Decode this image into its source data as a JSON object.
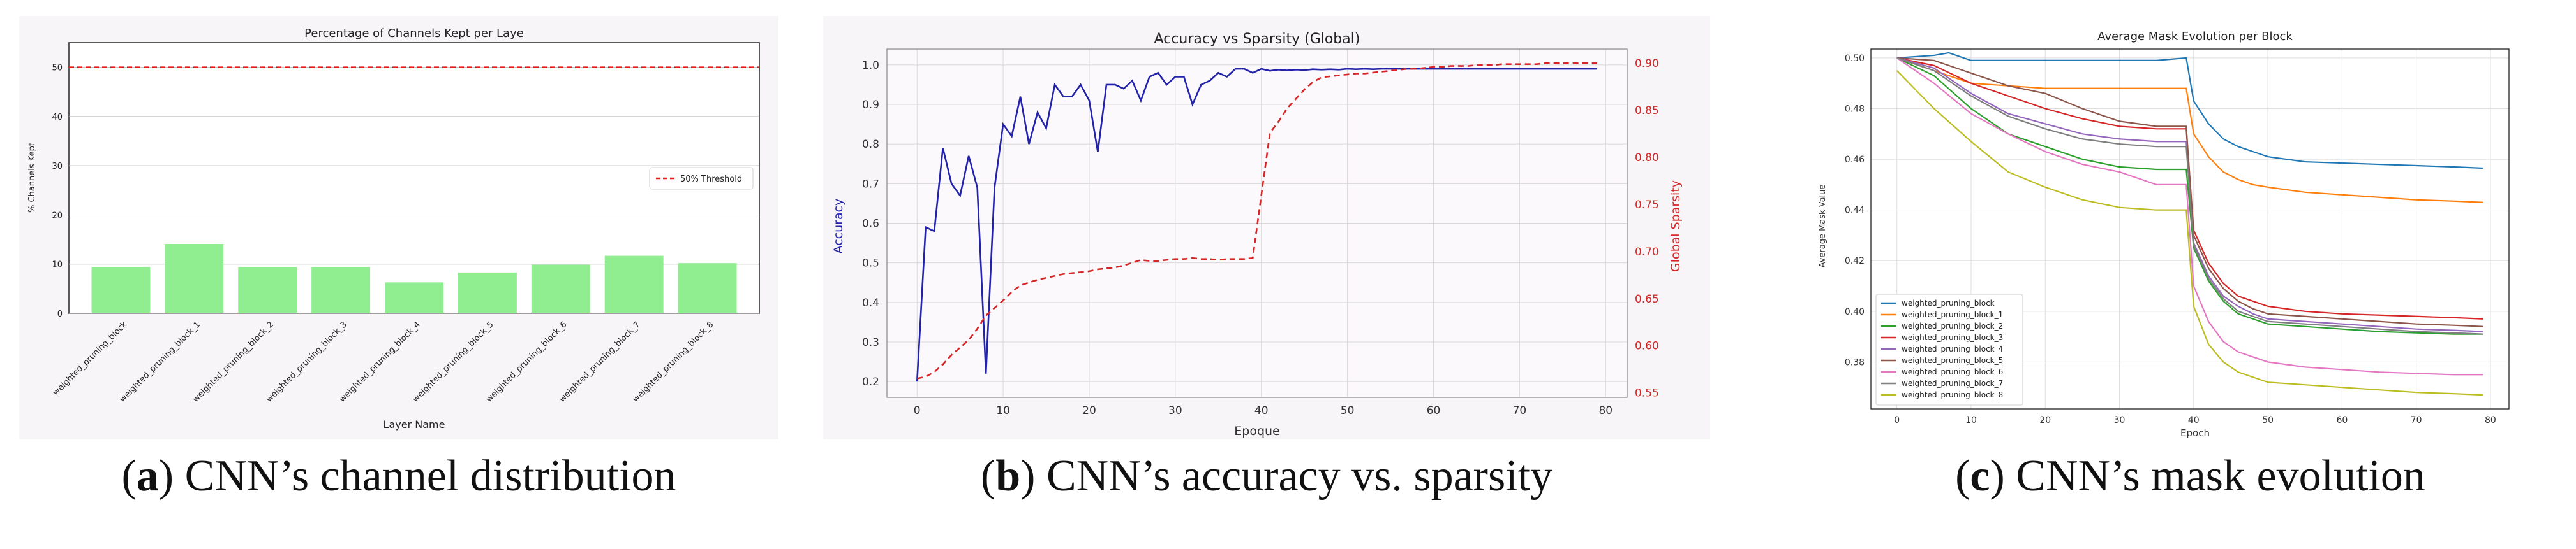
{
  "charts": {
    "a": {
      "caption_letter": "a",
      "caption_text": "CNN’s channel distribution",
      "chart_data": {
        "type": "bar",
        "title": "Percentage of Channels Kept per Laye",
        "xlabel": "Layer Name",
        "ylabel": "% Channels Kept",
        "ylim": [
          0,
          55
        ],
        "yticks": [
          "0",
          "10",
          "20",
          "30",
          "40",
          "50"
        ],
        "categories": [
          "weighted_pruning_block",
          "weighted_pruning_block_1",
          "weighted_pruning_block_2",
          "weighted_pruning_block_3",
          "weighted_pruning_block_4",
          "weighted_pruning_block_5",
          "weighted_pruning_block_6",
          "weighted_pruning_block_7",
          "weighted_pruning_block_8"
        ],
        "values": [
          9.4,
          14.1,
          9.4,
          9.4,
          6.3,
          8.3,
          9.9,
          11.7,
          10.2
        ],
        "threshold": 50,
        "legend": [
          "50% Threshold"
        ],
        "legend_position": "right",
        "bar_color": "#90ee90",
        "threshold_color": "#e41a1c",
        "grid": true
      }
    },
    "b": {
      "caption_letter": "b",
      "caption_text": "CNN’s accuracy vs. sparsity",
      "chart_data": {
        "type": "line",
        "title": "Accuracy vs Sparsity (Global)",
        "xlabel": "Epoque",
        "ylabel": "Accuracy",
        "ylabel_right": "Global Sparsity",
        "xlim": [
          -3.5,
          82.5
        ],
        "ylim": [
          0.16,
          1.04
        ],
        "ylim_right": [
          0.545,
          0.915
        ],
        "xticks": [
          "0",
          "10",
          "20",
          "30",
          "40",
          "50",
          "60",
          "70",
          "80"
        ],
        "yticks": [
          "0.2",
          "0.3",
          "0.4",
          "0.5",
          "0.6",
          "0.7",
          "0.8",
          "0.9",
          "1.0"
        ],
        "yticks_right": [
          "0.55",
          "0.60",
          "0.65",
          "0.70",
          "0.75",
          "0.80",
          "0.85",
          "0.90"
        ],
        "grid": true,
        "series": [
          {
            "axis": "left",
            "color": "#2222aa",
            "style": "solid",
            "x": [
              0,
              1,
              2,
              3,
              4,
              5,
              6,
              7,
              8,
              9,
              10,
              11,
              12,
              13,
              14,
              15,
              16,
              17,
              18,
              19,
              20,
              21,
              22,
              23,
              24,
              25,
              26,
              27,
              28,
              29,
              30,
              31,
              32,
              33,
              34,
              35,
              36,
              37,
              38,
              39,
              40,
              41,
              42,
              43,
              44,
              45,
              46,
              47,
              48,
              49,
              50,
              51,
              52,
              53,
              54,
              55,
              56,
              57,
              58,
              59,
              60,
              61,
              62,
              63,
              64,
              65,
              66,
              67,
              68,
              69,
              70,
              71,
              72,
              73,
              74,
              75,
              76,
              77,
              78,
              79
            ],
            "values": [
              0.2,
              0.59,
              0.58,
              0.79,
              0.7,
              0.67,
              0.77,
              0.69,
              0.22,
              0.69,
              0.85,
              0.82,
              0.92,
              0.8,
              0.88,
              0.84,
              0.95,
              0.92,
              0.92,
              0.95,
              0.91,
              0.78,
              0.95,
              0.95,
              0.94,
              0.96,
              0.91,
              0.97,
              0.98,
              0.95,
              0.97,
              0.97,
              0.9,
              0.95,
              0.96,
              0.98,
              0.97,
              0.99,
              0.99,
              0.98,
              0.99,
              0.985,
              0.988,
              0.986,
              0.988,
              0.987,
              0.989,
              0.988,
              0.989,
              0.988,
              0.99,
              0.989,
              0.99,
              0.989,
              0.99,
              0.99,
              0.99,
              0.99,
              0.99,
              0.99,
              0.99,
              0.99,
              0.99,
              0.99,
              0.99,
              0.99,
              0.99,
              0.99,
              0.99,
              0.99,
              0.99,
              0.99,
              0.99,
              0.99,
              0.99,
              0.99,
              0.99,
              0.99,
              0.99,
              0.99
            ]
          },
          {
            "axis": "right",
            "color": "#d62728",
            "style": "dashed",
            "x": [
              0,
              1,
              2,
              3,
              4,
              5,
              6,
              7,
              8,
              9,
              10,
              11,
              12,
              13,
              14,
              15,
              16,
              17,
              18,
              19,
              20,
              21,
              22,
              23,
              24,
              25,
              26,
              27,
              28,
              29,
              30,
              31,
              32,
              33,
              34,
              35,
              36,
              37,
              38,
              39,
              40,
              41,
              42,
              43,
              44,
              45,
              46,
              47,
              48,
              49,
              50,
              51,
              52,
              53,
              54,
              55,
              56,
              57,
              58,
              59,
              60,
              61,
              62,
              63,
              64,
              65,
              66,
              67,
              68,
              69,
              70,
              71,
              72,
              73,
              74,
              75,
              76,
              77,
              78,
              79
            ],
            "values": [
              0.565,
              0.567,
              0.572,
              0.58,
              0.59,
              0.598,
              0.606,
              0.618,
              0.632,
              0.64,
              0.648,
              0.657,
              0.664,
              0.667,
              0.67,
              0.672,
              0.674,
              0.676,
              0.677,
              0.678,
              0.679,
              0.681,
              0.682,
              0.683,
              0.685,
              0.688,
              0.691,
              0.69,
              0.69,
              0.691,
              0.692,
              0.692,
              0.693,
              0.692,
              0.692,
              0.691,
              0.692,
              0.692,
              0.692,
              0.693,
              0.76,
              0.826,
              0.838,
              0.852,
              0.862,
              0.872,
              0.88,
              0.885,
              0.886,
              0.887,
              0.888,
              0.889,
              0.889,
              0.89,
              0.891,
              0.892,
              0.893,
              0.894,
              0.894,
              0.895,
              0.896,
              0.896,
              0.897,
              0.897,
              0.897,
              0.898,
              0.898,
              0.898,
              0.899,
              0.899,
              0.899,
              0.899,
              0.899,
              0.9,
              0.9,
              0.9,
              0.9,
              0.9,
              0.9,
              0.9
            ]
          }
        ]
      }
    },
    "c": {
      "caption_letter": "c",
      "caption_text": "CNN’s mask evolution",
      "chart_data": {
        "type": "line",
        "title": "Average Mask Evolution per Block",
        "xlabel": "Epoch",
        "ylabel": "Average Mask Value",
        "xlim": [
          -3.5,
          82.5
        ],
        "ylim": [
          0.3615,
          0.5035
        ],
        "xticks": [
          "0",
          "10",
          "20",
          "30",
          "40",
          "50",
          "60",
          "70",
          "80"
        ],
        "yticks": [
          "0.38",
          "0.40",
          "0.42",
          "0.44",
          "0.46",
          "0.48",
          "0.50"
        ],
        "grid": true,
        "legend_position": "lower-left",
        "series": [
          {
            "name": "weighted_pruning_block",
            "color": "#1f77b4",
            "x": [
              0,
              5,
              7,
              10,
              20,
              30,
              35,
              39,
              40,
              42,
              44,
              46,
              48,
              50,
              55,
              60,
              65,
              70,
              75,
              79
            ],
            "values": [
              0.5,
              0.501,
              0.502,
              0.499,
              0.499,
              0.499,
              0.499,
              0.5,
              0.483,
              0.474,
              0.468,
              0.465,
              0.463,
              0.461,
              0.459,
              0.4585,
              0.458,
              0.4575,
              0.457,
              0.4565
            ]
          },
          {
            "name": "weighted_pruning_block_1",
            "color": "#ff7f0e",
            "x": [
              0,
              5,
              10,
              15,
              20,
              25,
              30,
              35,
              39,
              40,
              42,
              44,
              46,
              48,
              50,
              55,
              60,
              65,
              70,
              75,
              79
            ],
            "values": [
              0.5,
              0.495,
              0.49,
              0.489,
              0.488,
              0.488,
              0.488,
              0.488,
              0.488,
              0.47,
              0.461,
              0.455,
              0.452,
              0.45,
              0.449,
              0.447,
              0.446,
              0.445,
              0.444,
              0.4435,
              0.443
            ]
          },
          {
            "name": "weighted_pruning_block_2",
            "color": "#2ca02c",
            "x": [
              0,
              5,
              10,
              15,
              20,
              25,
              30,
              35,
              39,
              40,
              42,
              44,
              46,
              48,
              50,
              55,
              60,
              65,
              70,
              75,
              79
            ],
            "values": [
              0.5,
              0.493,
              0.48,
              0.47,
              0.465,
              0.46,
              0.457,
              0.456,
              0.456,
              0.425,
              0.412,
              0.404,
              0.399,
              0.397,
              0.395,
              0.394,
              0.393,
              0.392,
              0.3915,
              0.391,
              0.391
            ]
          },
          {
            "name": "weighted_pruning_block_3",
            "color": "#d62728",
            "x": [
              0,
              5,
              10,
              15,
              20,
              25,
              30,
              35,
              39,
              40,
              42,
              44,
              46,
              48,
              50,
              55,
              60,
              65,
              70,
              75,
              79
            ],
            "values": [
              0.5,
              0.497,
              0.49,
              0.485,
              0.48,
              0.476,
              0.473,
              0.472,
              0.472,
              0.432,
              0.419,
              0.411,
              0.406,
              0.404,
              0.402,
              0.4,
              0.399,
              0.3985,
              0.398,
              0.3975,
              0.397
            ]
          },
          {
            "name": "weighted_pruning_block_4",
            "color": "#9467bd",
            "x": [
              0,
              5,
              10,
              15,
              20,
              25,
              30,
              35,
              39,
              40,
              42,
              44,
              46,
              48,
              50,
              55,
              60,
              65,
              70,
              75,
              79
            ],
            "values": [
              0.5,
              0.496,
              0.486,
              0.478,
              0.474,
              0.47,
              0.468,
              0.467,
              0.467,
              0.427,
              0.414,
              0.406,
              0.402,
              0.399,
              0.397,
              0.396,
              0.395,
              0.394,
              0.393,
              0.3925,
              0.392
            ]
          },
          {
            "name": "weighted_pruning_block_5",
            "color": "#8c564b",
            "x": [
              0,
              5,
              10,
              15,
              20,
              25,
              30,
              35,
              39,
              40,
              42,
              44,
              46,
              48,
              50,
              55,
              60,
              65,
              70,
              75,
              79
            ],
            "values": [
              0.5,
              0.499,
              0.494,
              0.489,
              0.486,
              0.48,
              0.475,
              0.473,
              0.473,
              0.43,
              0.417,
              0.409,
              0.404,
              0.401,
              0.399,
              0.398,
              0.397,
              0.396,
              0.395,
              0.3945,
              0.394
            ]
          },
          {
            "name": "weighted_pruning_block_6",
            "color": "#e377c2",
            "x": [
              0,
              5,
              10,
              15,
              20,
              25,
              30,
              35,
              39,
              40,
              42,
              44,
              46,
              48,
              50,
              55,
              60,
              65,
              70,
              75,
              79
            ],
            "values": [
              0.5,
              0.49,
              0.478,
              0.47,
              0.463,
              0.458,
              0.455,
              0.45,
              0.45,
              0.41,
              0.396,
              0.388,
              0.384,
              0.382,
              0.38,
              0.378,
              0.377,
              0.376,
              0.3755,
              0.375,
              0.375
            ]
          },
          {
            "name": "weighted_pruning_block_7",
            "color": "#7f7f7f",
            "x": [
              0,
              5,
              10,
              15,
              20,
              25,
              30,
              35,
              39,
              40,
              42,
              44,
              46,
              48,
              50,
              55,
              60,
              65,
              70,
              75,
              79
            ],
            "values": [
              0.5,
              0.495,
              0.485,
              0.477,
              0.472,
              0.468,
              0.466,
              0.465,
              0.465,
              0.426,
              0.413,
              0.405,
              0.4,
              0.398,
              0.396,
              0.395,
              0.394,
              0.393,
              0.392,
              0.3915,
              0.391
            ]
          },
          {
            "name": "weighted_pruning_block_8",
            "color": "#bcbd22",
            "x": [
              0,
              5,
              10,
              15,
              20,
              25,
              30,
              35,
              39,
              40,
              42,
              44,
              46,
              48,
              50,
              55,
              60,
              65,
              70,
              75,
              79
            ],
            "values": [
              0.495,
              0.48,
              0.467,
              0.455,
              0.449,
              0.444,
              0.441,
              0.44,
              0.44,
              0.402,
              0.387,
              0.38,
              0.376,
              0.374,
              0.372,
              0.371,
              0.37,
              0.369,
              0.368,
              0.3675,
              0.367
            ]
          }
        ]
      }
    }
  }
}
